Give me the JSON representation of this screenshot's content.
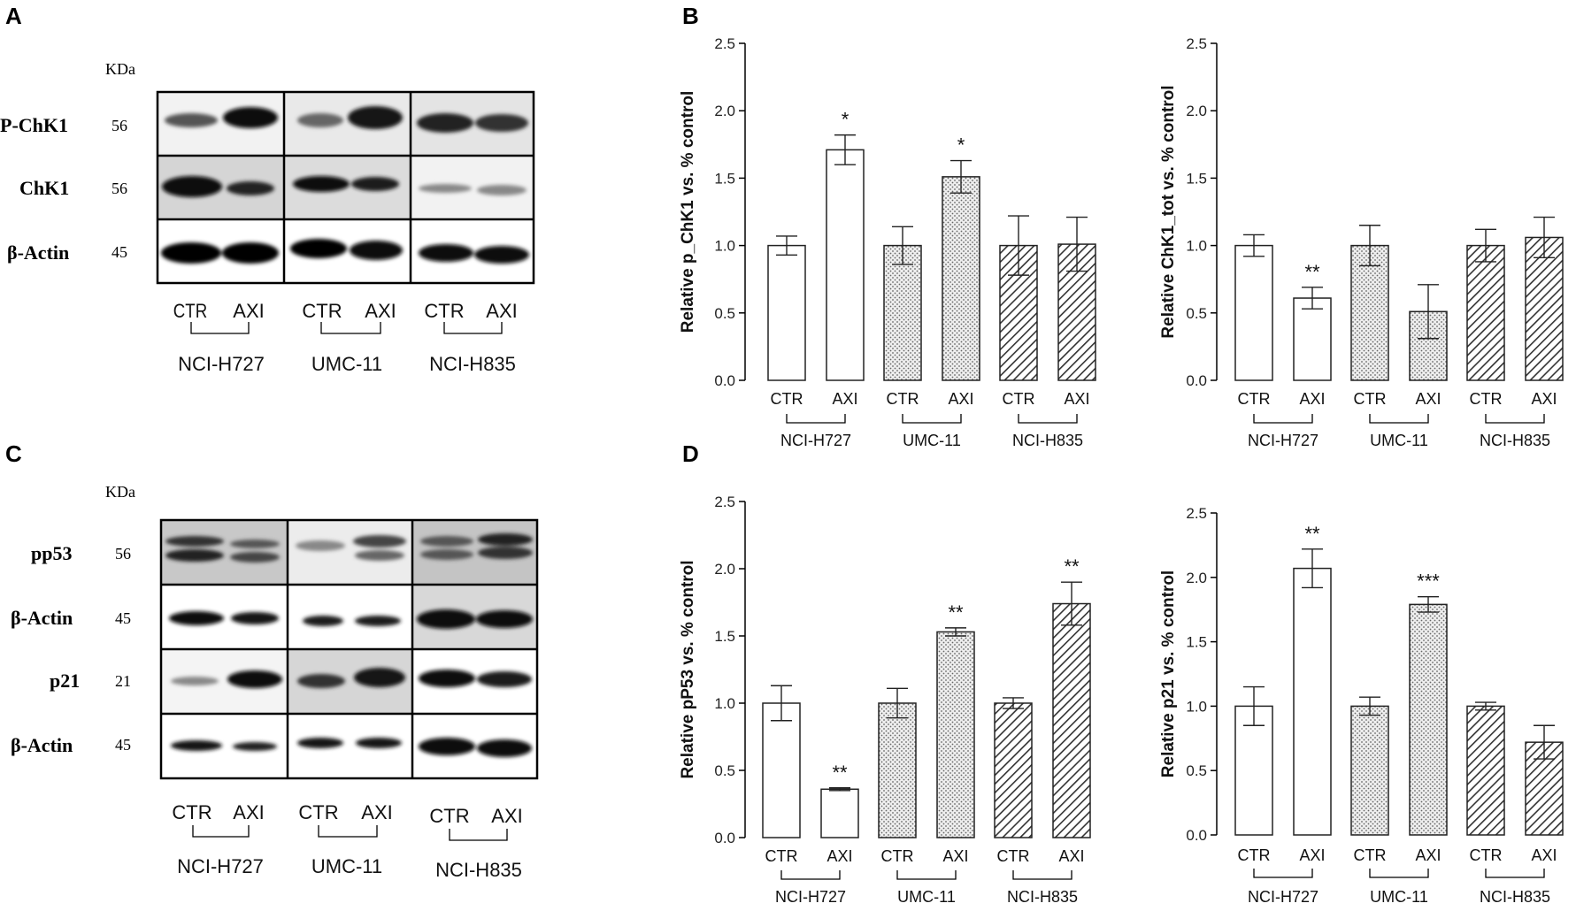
{
  "panels": {
    "A": {
      "letter": "A",
      "unit_label": "KDa",
      "rows": [
        {
          "label": "P-ChK1",
          "kda": "56"
        },
        {
          "label": "ChK1",
          "kda": "56"
        },
        {
          "label": "β-Actin",
          "kda": "45"
        }
      ],
      "lanes": [
        "CTR",
        "AXI"
      ],
      "cell_lines": [
        "NCI-H727",
        "UMC-11",
        "NCI-H835"
      ]
    },
    "C": {
      "letter": "C",
      "unit_label": "KDa",
      "rows": [
        {
          "label": "pp53",
          "kda": "56"
        },
        {
          "label": "β-Actin",
          "kda": "45"
        },
        {
          "label": "p21",
          "kda": "21"
        },
        {
          "label": "β-Actin",
          "kda": "45"
        }
      ],
      "lanes": [
        "CTR",
        "AXI"
      ],
      "cell_lines": [
        "NCI-H727",
        "UMC-11",
        "NCI-H835"
      ]
    },
    "B": {
      "letter": "B"
    },
    "D": {
      "letter": "D"
    }
  },
  "colors": {
    "axis": "#000000",
    "bar_edge": "#222222",
    "white_fill": "#ffffff",
    "dot_fill": "#e6e6e6",
    "hatch_line": "#333333"
  },
  "chart_data": [
    {
      "panel": "B",
      "type": "bar",
      "ylabel": "Relative p_ChK1 vs. % control",
      "ylim": [
        0,
        2.5
      ],
      "yticks": [
        "0.0",
        "0.5",
        "1.0",
        "1.5",
        "2.0",
        "2.5"
      ],
      "categories": [
        "CTR",
        "AXI",
        "CTR",
        "AXI",
        "CTR",
        "AXI"
      ],
      "groups": [
        "NCI-H727",
        "UMC-11",
        "NCI-H835"
      ],
      "values": [
        1.0,
        1.71,
        1.0,
        1.51,
        1.0,
        1.01
      ],
      "errors": [
        0.07,
        0.11,
        0.14,
        0.12,
        0.22,
        0.2
      ],
      "fills": [
        "white",
        "white",
        "dotted",
        "dotted",
        "hatched",
        "hatched"
      ],
      "annotations": [
        "",
        "*",
        "",
        "*",
        "",
        ""
      ]
    },
    {
      "panel": "B",
      "type": "bar",
      "ylabel": "Relative ChK1_tot vs. % control",
      "ylim": [
        0,
        2.5
      ],
      "yticks": [
        "0.0",
        "0.5",
        "1.0",
        "1.5",
        "2.0",
        "2.5"
      ],
      "categories": [
        "CTR",
        "AXI",
        "CTR",
        "AXI",
        "CTR",
        "AXI"
      ],
      "groups": [
        "NCI-H727",
        "UMC-11",
        "NCI-H835"
      ],
      "values": [
        1.0,
        0.61,
        1.0,
        0.51,
        1.0,
        1.06
      ],
      "errors": [
        0.08,
        0.08,
        0.15,
        0.2,
        0.12,
        0.15
      ],
      "fills": [
        "white",
        "white",
        "dotted",
        "dotted",
        "hatched",
        "hatched"
      ],
      "annotations": [
        "",
        "**",
        "",
        "",
        "",
        ""
      ]
    },
    {
      "panel": "D",
      "type": "bar",
      "ylabel": "Relative pP53 vs. % control",
      "ylim": [
        0,
        2.5
      ],
      "yticks": [
        "0.0",
        "0.5",
        "1.0",
        "1.5",
        "2.0",
        "2.5"
      ],
      "categories": [
        "CTR",
        "AXI",
        "CTR",
        "AXI",
        "CTR",
        "AXI"
      ],
      "groups": [
        "NCI-H727",
        "UMC-11",
        "NCI-H835"
      ],
      "values": [
        1.0,
        0.36,
        1.0,
        1.53,
        1.0,
        1.74
      ],
      "errors": [
        0.13,
        0.01,
        0.11,
        0.03,
        0.04,
        0.16
      ],
      "fills": [
        "white",
        "white",
        "dotted",
        "dotted",
        "hatched",
        "hatched"
      ],
      "annotations": [
        "",
        "**",
        "",
        "**",
        "",
        "**"
      ]
    },
    {
      "panel": "D",
      "type": "bar",
      "ylabel": "Relative p21 vs. % control",
      "ylim": [
        0,
        2.5
      ],
      "yticks": [
        "0.0",
        "0.5",
        "1.0",
        "1.5",
        "2.0",
        "2.5"
      ],
      "categories": [
        "CTR",
        "AXI",
        "CTR",
        "AXI",
        "CTR",
        "AXI"
      ],
      "groups": [
        "NCI-H727",
        "UMC-11",
        "NCI-H835"
      ],
      "values": [
        1.0,
        2.07,
        1.0,
        1.79,
        1.0,
        0.72
      ],
      "errors": [
        0.15,
        0.15,
        0.07,
        0.06,
        0.03,
        0.13
      ],
      "fills": [
        "white",
        "white",
        "dotted",
        "dotted",
        "hatched",
        "hatched"
      ],
      "annotations": [
        "",
        "**",
        "",
        "***",
        "",
        ""
      ]
    }
  ]
}
